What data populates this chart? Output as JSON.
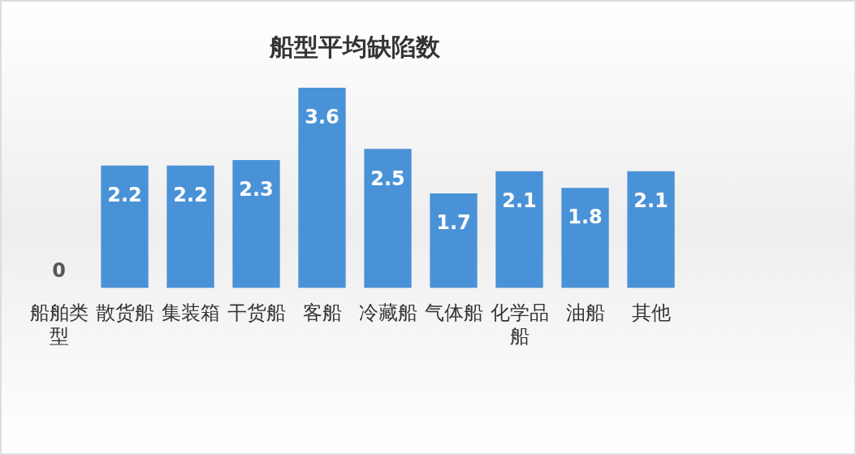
{
  "chart_data": {
    "type": "bar",
    "title": "船型平均缺陷数",
    "categories": [
      "船舶类型",
      "散货船",
      "集装箱",
      "干货船",
      "客船",
      "冷藏船",
      "气体船",
      "化学品船",
      "油船",
      "其他"
    ],
    "values": [
      0,
      2.2,
      2.2,
      2.3,
      3.6,
      2.5,
      1.7,
      2.1,
      1.8,
      2.1
    ],
    "color": "#4a92d8",
    "data_labels": true,
    "grid": false,
    "legend": false
  }
}
